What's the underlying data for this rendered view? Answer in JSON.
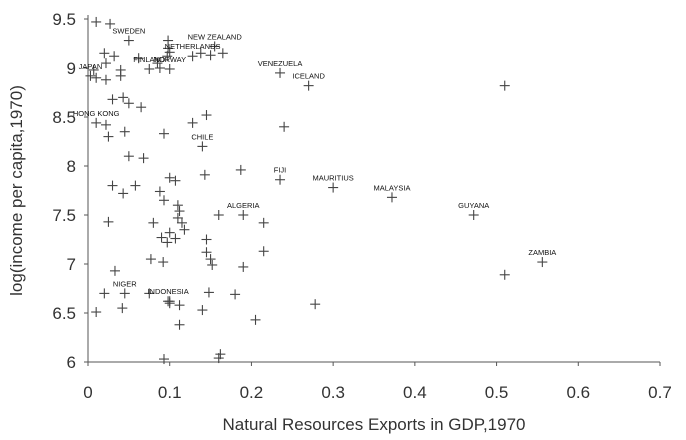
{
  "chart_data": {
    "type": "scatter",
    "title": "",
    "xlabel": "Natural Resources Exports in GDP,1970",
    "ylabel": "log(income per capita,1970)",
    "xlim": [
      0,
      0.7
    ],
    "ylim": [
      6,
      9.5
    ],
    "x_ticks": [
      "0",
      "0.1",
      "0.2",
      "0.3",
      "0.4",
      "0.5",
      "0.6",
      "0.7"
    ],
    "y_ticks": [
      "6",
      "6.5",
      "7",
      "7.5",
      "8",
      "8.5",
      "9",
      "9.5"
    ],
    "grid": false,
    "marker": "plus",
    "colors": {
      "marker": "#444444",
      "axis": "#555555",
      "text": "#333333"
    },
    "labeled_points": [
      {
        "label": "SWEDEN",
        "x": 0.05,
        "y": 9.28
      },
      {
        "label": "NEW ZEALAND",
        "x": 0.155,
        "y": 9.22
      },
      {
        "label": "NETHERLANDS",
        "x": 0.128,
        "y": 9.12
      },
      {
        "label": "FINLAND",
        "x": 0.075,
        "y": 8.99
      },
      {
        "label": "NORWAY",
        "x": 0.1,
        "y": 8.99
      },
      {
        "label": "VENEZUELA",
        "x": 0.235,
        "y": 8.95
      },
      {
        "label": "ICELAND",
        "x": 0.27,
        "y": 8.82
      },
      {
        "label": "JAPAN",
        "x": 0.003,
        "y": 8.92
      },
      {
        "label": "HONG KONG",
        "x": 0.01,
        "y": 8.44
      },
      {
        "label": "CHILE",
        "x": 0.14,
        "y": 8.2
      },
      {
        "label": "FIJI",
        "x": 0.235,
        "y": 7.86
      },
      {
        "label": "MAURITIUS",
        "x": 0.3,
        "y": 7.78
      },
      {
        "label": "MALAYSIA",
        "x": 0.372,
        "y": 7.68
      },
      {
        "label": "GUYANA",
        "x": 0.472,
        "y": 7.5
      },
      {
        "label": "ALGERIA",
        "x": 0.19,
        "y": 7.5
      },
      {
        "label": "ZAMBIA",
        "x": 0.556,
        "y": 7.02
      },
      {
        "label": "NIGER",
        "x": 0.045,
        "y": 6.7
      },
      {
        "label": "INDONESIA",
        "x": 0.098,
        "y": 6.62
      }
    ],
    "points": [
      [
        0.01,
        9.47
      ],
      [
        0.027,
        9.45
      ],
      [
        0.02,
        9.15
      ],
      [
        0.032,
        9.12
      ],
      [
        0.022,
        9.05
      ],
      [
        0.007,
        8.98
      ],
      [
        0.04,
        8.98
      ],
      [
        0.01,
        8.9
      ],
      [
        0.04,
        8.92
      ],
      [
        0.022,
        8.88
      ],
      [
        0.098,
        9.28
      ],
      [
        0.098,
        9.2
      ],
      [
        0.1,
        9.16
      ],
      [
        0.097,
        9.12
      ],
      [
        0.138,
        9.15
      ],
      [
        0.165,
        9.15
      ],
      [
        0.15,
        9.13
      ],
      [
        0.062,
        9.1
      ],
      [
        0.085,
        9.05
      ],
      [
        0.088,
        9.0
      ],
      [
        0.03,
        8.68
      ],
      [
        0.043,
        8.7
      ],
      [
        0.05,
        8.64
      ],
      [
        0.065,
        8.6
      ],
      [
        0.022,
        8.42
      ],
      [
        0.045,
        8.35
      ],
      [
        0.025,
        8.3
      ],
      [
        0.093,
        8.33
      ],
      [
        0.145,
        8.52
      ],
      [
        0.128,
        8.44
      ],
      [
        0.24,
        8.4
      ],
      [
        0.51,
        8.82
      ],
      [
        0.05,
        8.1
      ],
      [
        0.068,
        8.08
      ],
      [
        0.187,
        7.96
      ],
      [
        0.1,
        7.88
      ],
      [
        0.107,
        7.85
      ],
      [
        0.143,
        7.91
      ],
      [
        0.03,
        7.8
      ],
      [
        0.043,
        7.72
      ],
      [
        0.058,
        7.8
      ],
      [
        0.088,
        7.74
      ],
      [
        0.093,
        7.65
      ],
      [
        0.11,
        7.6
      ],
      [
        0.112,
        7.54
      ],
      [
        0.11,
        7.47
      ],
      [
        0.115,
        7.42
      ],
      [
        0.118,
        7.35
      ],
      [
        0.16,
        7.5
      ],
      [
        0.08,
        7.42
      ],
      [
        0.025,
        7.43
      ],
      [
        0.1,
        7.32
      ],
      [
        0.09,
        7.27
      ],
      [
        0.107,
        7.26
      ],
      [
        0.097,
        7.22
      ],
      [
        0.145,
        7.25
      ],
      [
        0.215,
        7.42
      ],
      [
        0.145,
        7.12
      ],
      [
        0.215,
        7.13
      ],
      [
        0.077,
        7.05
      ],
      [
        0.092,
        7.02
      ],
      [
        0.15,
        7.05
      ],
      [
        0.152,
        6.99
      ],
      [
        0.19,
        6.97
      ],
      [
        0.033,
        6.93
      ],
      [
        0.02,
        6.7
      ],
      [
        0.042,
        6.55
      ],
      [
        0.075,
        6.7
      ],
      [
        0.1,
        6.6
      ],
      [
        0.112,
        6.58
      ],
      [
        0.148,
        6.71
      ],
      [
        0.18,
        6.69
      ],
      [
        0.14,
        6.53
      ],
      [
        0.278,
        6.59
      ],
      [
        0.112,
        6.38
      ],
      [
        0.205,
        6.43
      ],
      [
        0.01,
        6.51
      ],
      [
        0.093,
        6.03
      ],
      [
        0.16,
        6.04
      ],
      [
        0.162,
        6.08
      ],
      [
        0.1,
        6.62
      ],
      [
        0.51,
        6.89
      ]
    ]
  }
}
